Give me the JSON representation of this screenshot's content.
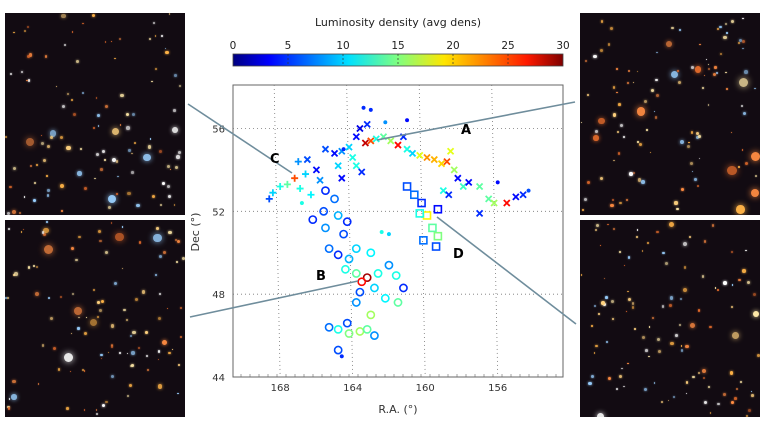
{
  "panels": [
    {
      "name": "panel-top-left",
      "label_for": "C"
    },
    {
      "name": "panel-bottom-left",
      "label_for": "B"
    },
    {
      "name": "panel-top-right",
      "label_for": "A"
    },
    {
      "name": "panel-bottom-right",
      "label_for": "D"
    }
  ],
  "chart_data": {
    "type": "scatter",
    "title": "",
    "xlabel": "R.A. (°)",
    "ylabel": "Dec (°)",
    "xlim": [
      170.6,
      152.4
    ],
    "ylim": [
      44,
      58.1
    ],
    "xticks": [
      "168",
      "164",
      "160",
      "156"
    ],
    "xtick_values": [
      168,
      164,
      160,
      156
    ],
    "yticks": [
      "44",
      "48",
      "52",
      "56"
    ],
    "ytick_values": [
      44,
      48,
      52,
      56
    ],
    "grid": "dotted",
    "colorbar": {
      "label": "Luminosity density (avg dens)",
      "range": [
        0,
        30
      ],
      "ticks": [
        "0",
        "5",
        "10",
        "15",
        "20",
        "25",
        "30"
      ],
      "tick_values": [
        0,
        5,
        10,
        15,
        20,
        25,
        30
      ],
      "colormap": "jet",
      "placement": "top"
    },
    "annotations": [
      "A",
      "B",
      "C",
      "D"
    ],
    "point_fields": [
      "ra",
      "dec",
      "luminosity_density",
      "marker"
    ],
    "points": [
      [
        165.5,
        55.0,
        6,
        "x"
      ],
      [
        165.0,
        54.8,
        4,
        "x"
      ],
      [
        164.6,
        54.9,
        8,
        "x"
      ],
      [
        164.2,
        55.1,
        10,
        "x"
      ],
      [
        164.0,
        54.6,
        12,
        "x"
      ],
      [
        163.8,
        55.6,
        4,
        "x"
      ],
      [
        163.6,
        56.0,
        3,
        "x"
      ],
      [
        163.2,
        56.2,
        5,
        "x"
      ],
      [
        163.3,
        55.3,
        28,
        "x"
      ],
      [
        163.0,
        55.4,
        24,
        "x"
      ],
      [
        162.7,
        55.5,
        12,
        "x"
      ],
      [
        162.3,
        55.6,
        14,
        "x"
      ],
      [
        161.9,
        55.4,
        16,
        "x"
      ],
      [
        161.5,
        55.2,
        26,
        "x"
      ],
      [
        161.2,
        55.6,
        5,
        "x"
      ],
      [
        161.0,
        55.0,
        12,
        "x"
      ],
      [
        160.7,
        54.8,
        10,
        "x"
      ],
      [
        160.3,
        54.7,
        18,
        "x"
      ],
      [
        159.9,
        54.6,
        22,
        "x"
      ],
      [
        159.5,
        54.5,
        21,
        "x"
      ],
      [
        159.1,
        54.3,
        20,
        "x"
      ],
      [
        158.8,
        54.4,
        24,
        "x"
      ],
      [
        158.6,
        54.9,
        18,
        "x"
      ],
      [
        158.4,
        54.0,
        16,
        "x"
      ],
      [
        158.2,
        53.6,
        4,
        "x"
      ],
      [
        157.9,
        53.2,
        13,
        "x"
      ],
      [
        157.6,
        53.4,
        4,
        "x"
      ],
      [
        157.0,
        53.2,
        14,
        "x"
      ],
      [
        156.5,
        52.6,
        14,
        "x"
      ],
      [
        156.2,
        52.4,
        16,
        "x"
      ],
      [
        155.5,
        52.4,
        26,
        "x"
      ],
      [
        155.0,
        52.7,
        4,
        "x"
      ],
      [
        154.6,
        52.8,
        5,
        "x"
      ],
      [
        157.0,
        51.9,
        5,
        "x"
      ],
      [
        159.0,
        53.0,
        12,
        "x"
      ],
      [
        158.7,
        52.8,
        5,
        "x"
      ],
      [
        166.5,
        54.5,
        6,
        "x"
      ],
      [
        166.0,
        54.0,
        4,
        "x"
      ],
      [
        165.8,
        53.5,
        8,
        "x"
      ],
      [
        164.6,
        53.6,
        4,
        "x"
      ],
      [
        164.8,
        54.2,
        10,
        "x"
      ],
      [
        163.8,
        54.2,
        12,
        "x"
      ],
      [
        163.5,
        53.9,
        5,
        "x"
      ],
      [
        167.2,
        53.6,
        24,
        "+"
      ],
      [
        167.6,
        53.3,
        14,
        "+"
      ],
      [
        168.0,
        53.2,
        12,
        "+"
      ],
      [
        168.4,
        52.9,
        10,
        "+"
      ],
      [
        168.6,
        52.6,
        6,
        "+"
      ],
      [
        166.9,
        53.1,
        12,
        "+"
      ],
      [
        166.6,
        53.8,
        10,
        "+"
      ],
      [
        166.3,
        52.8,
        11,
        "+"
      ],
      [
        167.0,
        54.4,
        8,
        "+"
      ],
      [
        166.8,
        52.4,
        12,
        "."
      ],
      [
        165.5,
        53.0,
        5,
        "o"
      ],
      [
        165.0,
        52.6,
        7,
        "o"
      ],
      [
        165.6,
        52.0,
        6,
        "o"
      ],
      [
        166.2,
        51.6,
        5,
        "o"
      ],
      [
        165.5,
        51.2,
        8,
        "o"
      ],
      [
        164.8,
        51.8,
        9,
        "o"
      ],
      [
        164.3,
        51.5,
        5,
        "o"
      ],
      [
        164.5,
        50.9,
        6,
        "o"
      ],
      [
        165.3,
        50.2,
        7,
        "o"
      ],
      [
        164.8,
        49.9,
        5,
        "o"
      ],
      [
        164.2,
        49.7,
        9,
        "o"
      ],
      [
        163.8,
        50.2,
        10,
        "o"
      ],
      [
        163.0,
        50.0,
        11,
        "o"
      ],
      [
        164.4,
        49.2,
        12,
        "o"
      ],
      [
        163.8,
        49.0,
        14,
        "o"
      ],
      [
        163.2,
        48.8,
        29,
        "o"
      ],
      [
        163.5,
        48.6,
        26,
        "o"
      ],
      [
        162.6,
        49.0,
        12,
        "o"
      ],
      [
        162.0,
        49.4,
        8,
        "o"
      ],
      [
        161.6,
        48.9,
        12,
        "o"
      ],
      [
        161.2,
        48.3,
        5,
        "o"
      ],
      [
        162.8,
        48.3,
        10,
        "o"
      ],
      [
        163.6,
        48.1,
        6,
        "o"
      ],
      [
        162.2,
        47.8,
        11,
        "o"
      ],
      [
        161.5,
        47.6,
        14,
        "o"
      ],
      [
        163.8,
        47.6,
        8,
        "o"
      ],
      [
        163.0,
        47.0,
        16,
        "o"
      ],
      [
        164.3,
        46.6,
        6,
        "o"
      ],
      [
        164.8,
        46.3,
        12,
        "o"
      ],
      [
        164.2,
        46.1,
        15,
        "o"
      ],
      [
        163.6,
        46.2,
        16,
        "o"
      ],
      [
        163.2,
        46.3,
        14,
        "o"
      ],
      [
        162.8,
        46.0,
        8,
        "o"
      ],
      [
        165.3,
        46.4,
        7,
        "o"
      ],
      [
        164.8,
        45.3,
        6,
        "o"
      ],
      [
        164.6,
        45.0,
        5,
        "."
      ],
      [
        163.4,
        57.0,
        5,
        "."
      ],
      [
        163.0,
        56.9,
        5,
        "."
      ],
      [
        161.0,
        56.4,
        4,
        "."
      ],
      [
        162.2,
        56.3,
        8,
        "."
      ],
      [
        164.5,
        55.0,
        5,
        "."
      ],
      [
        162.4,
        51.0,
        12,
        "."
      ],
      [
        162.0,
        50.9,
        10,
        "."
      ],
      [
        156.0,
        53.4,
        4,
        "."
      ],
      [
        154.3,
        53.0,
        6,
        "."
      ],
      [
        161.0,
        53.2,
        6,
        "s"
      ],
      [
        160.6,
        52.8,
        7,
        "s"
      ],
      [
        160.2,
        52.4,
        5,
        "s"
      ],
      [
        159.9,
        51.8,
        19,
        "s"
      ],
      [
        159.6,
        51.2,
        14,
        "s"
      ],
      [
        159.3,
        50.8,
        15,
        "s"
      ],
      [
        160.1,
        50.6,
        7,
        "s"
      ],
      [
        159.4,
        50.3,
        6,
        "s"
      ],
      [
        159.3,
        52.1,
        4,
        "s"
      ],
      [
        160.3,
        51.9,
        12,
        "s"
      ]
    ]
  },
  "colors": {
    "line": "#6f8d9c",
    "axis": "#555555",
    "grid": "#777777"
  }
}
